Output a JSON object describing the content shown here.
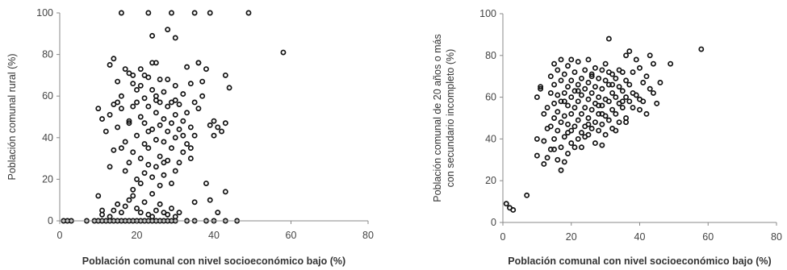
{
  "chart_data": [
    {
      "type": "scatter",
      "xlabel": "Población comunal con nivel socioeconómico bajo (%)",
      "ylabel": "Población comunal rural (%)",
      "xlim": [
        0,
        80
      ],
      "ylim": [
        0,
        100
      ],
      "xticks": [
        "0",
        "20",
        "40",
        "60",
        "80"
      ],
      "yticks": [
        "0",
        "20",
        "40",
        "60",
        "80",
        "100"
      ],
      "grid": false,
      "points": [
        [
          1,
          0
        ],
        [
          2,
          0
        ],
        [
          3,
          0
        ],
        [
          7,
          0
        ],
        [
          9,
          0
        ],
        [
          10,
          0
        ],
        [
          11,
          0
        ],
        [
          12,
          0
        ],
        [
          13,
          0
        ],
        [
          14,
          0
        ],
        [
          15,
          0
        ],
        [
          16,
          0
        ],
        [
          17,
          0
        ],
        [
          18,
          0
        ],
        [
          19,
          0
        ],
        [
          20,
          0
        ],
        [
          21,
          0
        ],
        [
          22,
          0
        ],
        [
          23,
          0
        ],
        [
          24,
          0
        ],
        [
          25,
          0
        ],
        [
          26,
          0
        ],
        [
          27,
          0
        ],
        [
          28,
          0
        ],
        [
          29,
          0
        ],
        [
          30,
          0
        ],
        [
          33,
          0
        ],
        [
          35,
          0
        ],
        [
          38,
          0
        ],
        [
          40,
          0
        ],
        [
          43,
          0
        ],
        [
          46,
          0
        ],
        [
          11,
          3
        ],
        [
          13,
          2
        ],
        [
          14,
          5
        ],
        [
          15,
          8
        ],
        [
          16,
          4
        ],
        [
          17,
          7
        ],
        [
          18,
          10
        ],
        [
          19,
          12
        ],
        [
          20,
          6
        ],
        [
          21,
          4
        ],
        [
          22,
          9
        ],
        [
          23,
          3
        ],
        [
          24,
          2
        ],
        [
          25,
          5
        ],
        [
          26,
          8
        ],
        [
          27,
          4
        ],
        [
          28,
          3
        ],
        [
          29,
          6
        ],
        [
          30,
          2
        ],
        [
          31,
          4
        ],
        [
          10,
          12
        ],
        [
          11,
          5
        ],
        [
          13,
          26
        ],
        [
          14,
          34
        ],
        [
          14,
          56
        ],
        [
          15,
          45
        ],
        [
          15,
          67
        ],
        [
          16,
          35
        ],
        [
          16,
          54
        ],
        [
          17,
          24
        ],
        [
          17,
          38
        ],
        [
          18,
          28
        ],
        [
          18,
          48
        ],
        [
          18,
          71
        ],
        [
          19,
          15
        ],
        [
          19,
          33
        ],
        [
          19,
          55
        ],
        [
          20,
          20
        ],
        [
          20,
          41
        ],
        [
          20,
          63
        ],
        [
          21,
          18
        ],
        [
          21,
          30
        ],
        [
          21,
          50
        ],
        [
          21,
          65
        ],
        [
          22,
          23
        ],
        [
          22,
          37
        ],
        [
          22,
          47
        ],
        [
          22,
          59
        ],
        [
          23,
          27
        ],
        [
          23,
          35
        ],
        [
          23,
          55
        ],
        [
          23,
          69
        ],
        [
          24,
          13
        ],
        [
          24,
          21
        ],
        [
          24,
          44
        ],
        [
          24,
          63
        ],
        [
          25,
          26
        ],
        [
          25,
          39
        ],
        [
          25,
          52
        ],
        [
          25,
          60
        ],
        [
          26,
          17
        ],
        [
          26,
          31
        ],
        [
          26,
          46
        ],
        [
          26,
          57
        ],
        [
          27,
          22
        ],
        [
          27,
          38
        ],
        [
          27,
          49
        ],
        [
          27,
          62
        ],
        [
          28,
          29
        ],
        [
          28,
          43
        ],
        [
          28,
          55
        ],
        [
          28,
          68
        ],
        [
          29,
          18
        ],
        [
          29,
          35
        ],
        [
          29,
          47
        ],
        [
          29,
          57
        ],
        [
          30,
          24
        ],
        [
          30,
          40
        ],
        [
          30,
          51
        ],
        [
          30,
          65
        ],
        [
          31,
          28
        ],
        [
          31,
          44
        ],
        [
          31,
          56
        ],
        [
          32,
          33
        ],
        [
          32,
          48
        ],
        [
          32,
          61
        ],
        [
          33,
          37
        ],
        [
          33,
          52
        ],
        [
          34,
          30
        ],
        [
          34,
          45
        ],
        [
          34,
          66
        ],
        [
          35,
          41
        ],
        [
          35,
          57
        ],
        [
          36,
          54
        ],
        [
          36,
          76
        ],
        [
          37,
          60
        ],
        [
          38,
          18
        ],
        [
          38,
          73
        ],
        [
          39,
          46
        ],
        [
          40,
          48
        ],
        [
          41,
          45
        ],
        [
          42,
          43
        ],
        [
          43,
          47
        ],
        [
          43,
          70
        ],
        [
          44,
          64
        ],
        [
          35,
          9
        ],
        [
          39,
          10
        ],
        [
          41,
          4
        ],
        [
          43,
          14
        ],
        [
          13,
          75
        ],
        [
          14,
          78
        ],
        [
          17,
          73
        ],
        [
          19,
          70
        ],
        [
          22,
          70
        ],
        [
          24,
          76
        ],
        [
          25,
          76
        ],
        [
          26,
          68
        ],
        [
          28,
          92
        ],
        [
          30,
          88
        ],
        [
          33,
          74
        ],
        [
          36,
          76
        ],
        [
          18,
          47
        ],
        [
          20,
          57
        ],
        [
          23,
          43
        ],
        [
          25,
          58
        ],
        [
          27,
          28
        ],
        [
          30,
          58
        ],
        [
          32,
          41
        ],
        [
          34,
          35
        ],
        [
          37,
          67
        ],
        [
          40,
          41
        ],
        [
          10,
          54
        ],
        [
          11,
          49
        ],
        [
          12,
          43
        ],
        [
          13,
          51
        ],
        [
          15,
          57
        ],
        [
          16,
          60
        ],
        [
          19,
          66
        ],
        [
          21,
          73
        ],
        [
          24,
          89
        ],
        [
          16,
          100
        ],
        [
          23,
          100
        ],
        [
          29,
          100
        ],
        [
          35,
          100
        ],
        [
          39,
          100
        ],
        [
          49,
          100
        ],
        [
          58,
          81
        ]
      ]
    },
    {
      "type": "scatter",
      "xlabel": "Población comunal con nivel socioeconómico bajo (%)",
      "ylabel": "Población comunal de 20 años o más con secundario incompleto (%)",
      "ylabel_lines": [
        "Población comunal de 20 años o más",
        "con secundario incompleto (%)"
      ],
      "xlim": [
        0,
        80
      ],
      "ylim": [
        0,
        100
      ],
      "xticks": [
        "0",
        "20",
        "40",
        "60",
        "80"
      ],
      "yticks": [
        "0",
        "20",
        "40",
        "60",
        "80",
        "100"
      ],
      "grid": false,
      "points": [
        [
          1,
          9
        ],
        [
          2,
          7
        ],
        [
          3,
          6
        ],
        [
          7,
          13
        ],
        [
          10,
          32
        ],
        [
          10,
          40
        ],
        [
          10,
          60
        ],
        [
          11,
          64
        ],
        [
          11,
          65
        ],
        [
          12,
          39
        ],
        [
          12,
          28
        ],
        [
          13,
          31
        ],
        [
          13,
          45
        ],
        [
          13,
          55
        ],
        [
          14,
          35
        ],
        [
          14,
          46
        ],
        [
          14,
          62
        ],
        [
          14,
          70
        ],
        [
          15,
          40
        ],
        [
          15,
          50
        ],
        [
          15,
          57
        ],
        [
          15,
          66
        ],
        [
          15,
          76
        ],
        [
          16,
          30
        ],
        [
          16,
          44
        ],
        [
          16,
          53
        ],
        [
          16,
          61
        ],
        [
          16,
          73
        ],
        [
          17,
          25
        ],
        [
          17,
          36
        ],
        [
          17,
          48
        ],
        [
          17,
          58
        ],
        [
          17,
          68
        ],
        [
          17,
          78
        ],
        [
          18,
          29
        ],
        [
          18,
          41
        ],
        [
          18,
          51
        ],
        [
          18,
          62
        ],
        [
          18,
          71
        ],
        [
          19,
          33
        ],
        [
          19,
          47
        ],
        [
          19,
          56
        ],
        [
          19,
          65
        ],
        [
          19,
          75
        ],
        [
          20,
          38
        ],
        [
          20,
          44
        ],
        [
          20,
          52
        ],
        [
          20,
          60
        ],
        [
          20,
          68
        ],
        [
          21,
          36
        ],
        [
          21,
          46
        ],
        [
          21,
          55
        ],
        [
          21,
          63
        ],
        [
          21,
          72
        ],
        [
          22,
          40
        ],
        [
          22,
          49
        ],
        [
          22,
          58
        ],
        [
          22,
          66
        ],
        [
          22,
          77
        ],
        [
          23,
          43
        ],
        [
          23,
          52
        ],
        [
          23,
          61
        ],
        [
          23,
          69
        ],
        [
          24,
          46
        ],
        [
          24,
          55
        ],
        [
          24,
          64
        ],
        [
          24,
          73
        ],
        [
          25,
          42
        ],
        [
          25,
          50
        ],
        [
          25,
          59
        ],
        [
          25,
          67
        ],
        [
          25,
          78
        ],
        [
          26,
          45
        ],
        [
          26,
          54
        ],
        [
          26,
          62
        ],
        [
          26,
          71
        ],
        [
          27,
          48
        ],
        [
          27,
          57
        ],
        [
          27,
          65
        ],
        [
          27,
          74
        ],
        [
          28,
          44
        ],
        [
          28,
          52
        ],
        [
          28,
          60
        ],
        [
          28,
          69
        ],
        [
          29,
          37
        ],
        [
          29,
          47
        ],
        [
          29,
          56
        ],
        [
          29,
          64
        ],
        [
          29,
          73
        ],
        [
          30,
          42
        ],
        [
          30,
          51
        ],
        [
          30,
          59
        ],
        [
          30,
          68
        ],
        [
          30,
          76
        ],
        [
          31,
          49
        ],
        [
          31,
          58
        ],
        [
          31,
          66
        ],
        [
          31,
          88
        ],
        [
          32,
          45
        ],
        [
          32,
          54
        ],
        [
          32,
          62
        ],
        [
          32,
          71
        ],
        [
          33,
          52
        ],
        [
          33,
          60
        ],
        [
          33,
          69
        ],
        [
          34,
          48
        ],
        [
          34,
          57
        ],
        [
          34,
          65
        ],
        [
          34,
          73
        ],
        [
          35,
          55
        ],
        [
          35,
          63
        ],
        [
          35,
          72
        ],
        [
          36,
          50
        ],
        [
          36,
          60
        ],
        [
          36,
          68
        ],
        [
          36,
          80
        ],
        [
          37,
          58
        ],
        [
          37,
          66
        ],
        [
          37,
          82
        ],
        [
          38,
          55
        ],
        [
          38,
          72
        ],
        [
          39,
          61
        ],
        [
          39,
          78
        ],
        [
          40,
          59
        ],
        [
          40,
          74
        ],
        [
          41,
          58
        ],
        [
          41,
          67
        ],
        [
          42,
          52
        ],
        [
          42,
          70
        ],
        [
          43,
          64
        ],
        [
          43,
          80
        ],
        [
          44,
          62
        ],
        [
          44,
          76
        ],
        [
          45,
          57
        ],
        [
          46,
          67
        ],
        [
          49,
          76
        ],
        [
          58,
          83
        ],
        [
          12,
          52
        ],
        [
          15,
          35
        ],
        [
          18,
          58
        ],
        [
          20,
          78
        ],
        [
          23,
          36
        ],
        [
          26,
          70
        ],
        [
          28,
          56
        ],
        [
          31,
          72
        ],
        [
          33,
          44
        ],
        [
          36,
          48
        ],
        [
          38,
          62
        ],
        [
          40,
          54
        ],
        [
          24,
          41
        ],
        [
          27,
          38
        ],
        [
          19,
          43
        ],
        [
          22,
          63
        ],
        [
          25,
          47
        ],
        [
          29,
          52
        ],
        [
          32,
          66
        ],
        [
          35,
          58
        ]
      ]
    }
  ]
}
